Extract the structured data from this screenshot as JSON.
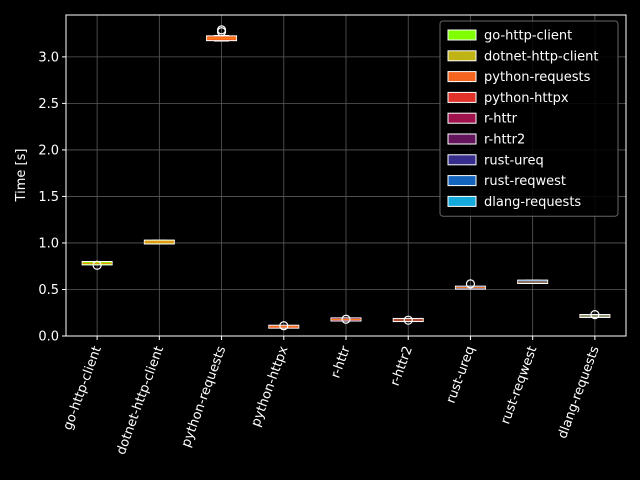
{
  "chart_data": {
    "type": "box",
    "ylabel": "Time [s]",
    "ylim": [
      0,
      3.45
    ],
    "yticks": [
      0.0,
      0.5,
      1.0,
      1.5,
      2.0,
      2.5,
      3.0
    ],
    "ytick_labels": [
      "0.0",
      "0.5",
      "1.0",
      "1.5",
      "2.0",
      "2.5",
      "3.0"
    ],
    "grid": true,
    "legend_position": "top-right",
    "categories": [
      "go-http-client",
      "dotnet-http-client",
      "python-requests",
      "python-httpx",
      "r-httr",
      "r-httr2",
      "rust-ureq",
      "rust-reqwest",
      "dlang-requests"
    ],
    "series": [
      {
        "name": "go-http-client",
        "color": "#7fff00",
        "box": {
          "whislo": 0.77,
          "q1": 0.775,
          "med": 0.78,
          "q3": 0.79,
          "whishi": 0.8
        },
        "fliers": [
          0.76
        ]
      },
      {
        "name": "dotnet-http-client",
        "color": "#c0b414",
        "box": {
          "whislo": 0.99,
          "q1": 1.0,
          "med": 1.01,
          "q3": 1.02,
          "whishi": 1.03
        },
        "fliers": []
      },
      {
        "name": "python-requests",
        "color": "#f4641e",
        "box": {
          "whislo": 3.17,
          "q1": 3.185,
          "med": 3.2,
          "q3": 3.215,
          "whishi": 3.23
        },
        "fliers": [
          3.27,
          3.29
        ]
      },
      {
        "name": "python-httpx",
        "color": "#e03228",
        "box": {
          "whislo": 0.09,
          "q1": 0.095,
          "med": 0.1,
          "q3": 0.105,
          "whishi": 0.11
        },
        "fliers": [
          0.11
        ]
      },
      {
        "name": "r-httr",
        "color": "#a0124b",
        "box": {
          "whislo": 0.165,
          "q1": 0.172,
          "med": 0.178,
          "q3": 0.184,
          "whishi": 0.19
        },
        "fliers": [
          0.18
        ]
      },
      {
        "name": "r-httr2",
        "color": "#64145a",
        "box": {
          "whislo": 0.16,
          "q1": 0.166,
          "med": 0.172,
          "q3": 0.178,
          "whishi": 0.185
        },
        "fliers": [
          0.17
        ]
      },
      {
        "name": "rust-ureq",
        "color": "#372d8c",
        "box": {
          "whislo": 0.51,
          "q1": 0.515,
          "med": 0.52,
          "q3": 0.525,
          "whishi": 0.53
        },
        "fliers": [
          0.56
        ]
      },
      {
        "name": "rust-reqwest",
        "color": "#1464be",
        "box": {
          "whislo": 0.57,
          "q1": 0.575,
          "med": 0.58,
          "q3": 0.59,
          "whishi": 0.6
        },
        "fliers": []
      },
      {
        "name": "dlang-requests",
        "color": "#14aadc",
        "box": {
          "whislo": 0.205,
          "q1": 0.21,
          "med": 0.215,
          "q3": 0.22,
          "whishi": 0.225
        },
        "fliers": [
          0.23
        ]
      }
    ]
  }
}
